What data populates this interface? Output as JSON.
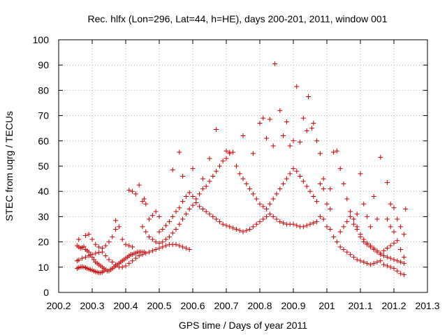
{
  "chart_data": {
    "type": "scatter",
    "title": "Rec. hlfx (Lon=296, Lat=44, h=HE), days 200-201, 2011, window 001",
    "xlabel": "GPS time / Days of year 2011",
    "ylabel": "STEC from uqrg / TECUs",
    "xlim": [
      200.2,
      201.3
    ],
    "ylim": [
      0,
      100
    ],
    "xticks": [
      "200.2",
      "200.3",
      "200.4",
      "200.5",
      "200.6",
      "200.7",
      "200.8",
      "200.9",
      "201",
      "201.1",
      "201.2",
      "201.3"
    ],
    "yticks": [
      "0",
      "10",
      "20",
      "30",
      "40",
      "50",
      "60",
      "70",
      "80",
      "90",
      "100"
    ],
    "marker": "+",
    "color": "#cc0000",
    "grid": true,
    "points": [
      [
        200.255,
        18.5
      ],
      [
        200.26,
        18.0
      ],
      [
        200.265,
        17.5
      ],
      [
        200.27,
        17.8
      ],
      [
        200.275,
        18.2
      ],
      [
        200.28,
        17.0
      ],
      [
        200.285,
        16.5
      ],
      [
        200.29,
        16.0
      ],
      [
        200.295,
        15.0
      ],
      [
        200.3,
        14.0
      ],
      [
        200.305,
        13.0
      ],
      [
        200.31,
        12.0
      ],
      [
        200.315,
        11.5
      ],
      [
        200.32,
        11.0
      ],
      [
        200.325,
        10.5
      ],
      [
        200.33,
        10.0
      ],
      [
        200.335,
        9.5
      ],
      [
        200.34,
        9.0
      ],
      [
        200.345,
        8.5
      ],
      [
        200.35,
        8.5
      ],
      [
        200.355,
        9.0
      ],
      [
        200.36,
        9.5
      ],
      [
        200.365,
        10.0
      ],
      [
        200.37,
        10.5
      ],
      [
        200.375,
        11.0
      ],
      [
        200.38,
        11.5
      ],
      [
        200.385,
        12.0
      ],
      [
        200.39,
        12.5
      ],
      [
        200.395,
        13.0
      ],
      [
        200.4,
        13.5
      ],
      [
        200.405,
        14.0
      ],
      [
        200.41,
        14.5
      ],
      [
        200.415,
        15.0
      ],
      [
        200.42,
        15.0
      ],
      [
        200.425,
        15.5
      ],
      [
        200.43,
        15.5
      ],
      [
        200.435,
        16.0
      ],
      [
        200.44,
        16.0
      ],
      [
        200.445,
        16.0
      ],
      [
        200.45,
        16.0
      ],
      [
        200.455,
        16.0
      ],
      [
        200.255,
        9.5
      ],
      [
        200.26,
        9.8
      ],
      [
        200.265,
        10.0
      ],
      [
        200.27,
        10.2
      ],
      [
        200.275,
        10.0
      ],
      [
        200.28,
        9.8
      ],
      [
        200.285,
        9.5
      ],
      [
        200.29,
        9.2
      ],
      [
        200.295,
        9.0
      ],
      [
        200.3,
        8.8
      ],
      [
        200.305,
        8.5
      ],
      [
        200.31,
        8.2
      ],
      [
        200.315,
        8.0
      ],
      [
        200.32,
        7.8
      ],
      [
        200.325,
        7.8
      ],
      [
        200.33,
        8.0
      ],
      [
        200.335,
        8.5
      ],
      [
        200.255,
        12.5
      ],
      [
        200.26,
        12.8
      ],
      [
        200.27,
        13.5
      ],
      [
        200.28,
        14.0
      ],
      [
        200.29,
        14.5
      ],
      [
        200.3,
        15.0
      ],
      [
        200.31,
        15.5
      ],
      [
        200.32,
        15.8
      ],
      [
        200.33,
        16.0
      ],
      [
        200.34,
        14.5
      ],
      [
        200.35,
        13.0
      ],
      [
        200.36,
        12.0
      ],
      [
        200.37,
        11.0
      ],
      [
        200.38,
        10.0
      ],
      [
        200.39,
        10.0
      ],
      [
        200.4,
        10.5
      ],
      [
        200.41,
        11.5
      ],
      [
        200.42,
        12.5
      ],
      [
        200.43,
        13.5
      ],
      [
        200.44,
        14.5
      ],
      [
        200.45,
        15.0
      ],
      [
        200.46,
        15.5
      ],
      [
        200.47,
        16.0
      ],
      [
        200.48,
        16.5
      ],
      [
        200.49,
        17.0
      ],
      [
        200.5,
        17.5
      ],
      [
        200.51,
        18.0
      ],
      [
        200.52,
        18.5
      ],
      [
        200.53,
        19.0
      ],
      [
        200.54,
        19.0
      ],
      [
        200.55,
        19.0
      ],
      [
        200.56,
        18.5
      ],
      [
        200.57,
        18.0
      ],
      [
        200.58,
        17.5
      ],
      [
        200.59,
        17.0
      ],
      [
        200.26,
        21.0
      ],
      [
        200.28,
        22.5
      ],
      [
        200.29,
        23.0
      ],
      [
        200.3,
        21.0
      ],
      [
        200.31,
        19.0
      ],
      [
        200.32,
        18.0
      ],
      [
        200.33,
        17.5
      ],
      [
        200.34,
        18.5
      ],
      [
        200.35,
        20.0
      ],
      [
        200.36,
        22.0
      ],
      [
        200.37,
        25.0
      ],
      [
        200.38,
        26.0
      ],
      [
        200.39,
        21.0
      ],
      [
        200.4,
        19.0
      ],
      [
        200.41,
        18.5
      ],
      [
        200.42,
        18.0
      ],
      [
        200.37,
        28.5
      ],
      [
        200.41,
        40.5
      ],
      [
        200.42,
        40.0
      ],
      [
        200.43,
        39.0
      ],
      [
        200.44,
        42.5
      ],
      [
        200.45,
        36.0
      ],
      [
        200.455,
        37.0
      ],
      [
        200.46,
        35.0
      ],
      [
        200.47,
        29.0
      ],
      [
        200.48,
        30.5
      ],
      [
        200.49,
        32.0
      ],
      [
        200.5,
        30.0
      ],
      [
        200.45,
        26.0
      ],
      [
        200.46,
        24.0
      ],
      [
        200.47,
        22.0
      ],
      [
        200.48,
        21.0
      ],
      [
        200.49,
        20.0
      ],
      [
        200.5,
        19.5
      ],
      [
        200.51,
        20.0
      ],
      [
        200.52,
        21.0
      ],
      [
        200.53,
        22.0
      ],
      [
        200.54,
        23.5
      ],
      [
        200.55,
        25.0
      ],
      [
        200.56,
        27.0
      ],
      [
        200.57,
        29.0
      ],
      [
        200.58,
        31.0
      ],
      [
        200.59,
        33.0
      ],
      [
        200.6,
        34.5
      ],
      [
        200.61,
        35.5
      ],
      [
        200.62,
        34.0
      ],
      [
        200.63,
        33.0
      ],
      [
        200.64,
        32.0
      ],
      [
        200.65,
        31.0
      ],
      [
        200.66,
        30.0
      ],
      [
        200.67,
        29.0
      ],
      [
        200.68,
        28.0
      ],
      [
        200.69,
        27.0
      ],
      [
        200.7,
        26.5
      ],
      [
        200.71,
        26.0
      ],
      [
        200.72,
        25.5
      ],
      [
        200.73,
        25.0
      ],
      [
        200.74,
        24.5
      ],
      [
        200.75,
        24.0
      ],
      [
        200.76,
        24.5
      ],
      [
        200.77,
        25.0
      ],
      [
        200.78,
        26.0
      ],
      [
        200.79,
        27.0
      ],
      [
        200.8,
        28.0
      ],
      [
        200.81,
        29.0
      ],
      [
        200.82,
        30.0
      ],
      [
        200.83,
        31.0
      ],
      [
        200.84,
        30.0
      ],
      [
        200.85,
        29.0
      ],
      [
        200.86,
        28.0
      ],
      [
        200.87,
        27.5
      ],
      [
        200.88,
        27.0
      ],
      [
        200.89,
        27.0
      ],
      [
        200.9,
        27.0
      ],
      [
        200.91,
        26.5
      ],
      [
        200.92,
        26.0
      ],
      [
        200.93,
        26.0
      ],
      [
        200.94,
        26.5
      ],
      [
        200.95,
        27.0
      ],
      [
        200.96,
        27.5
      ],
      [
        200.97,
        28.0
      ],
      [
        200.5,
        24.0
      ],
      [
        200.51,
        25.0
      ],
      [
        200.52,
        26.5
      ],
      [
        200.53,
        28.0
      ],
      [
        200.54,
        30.0
      ],
      [
        200.55,
        32.0
      ],
      [
        200.56,
        33.5
      ],
      [
        200.57,
        36.0
      ],
      [
        200.58,
        38.0
      ],
      [
        200.59,
        39.5
      ],
      [
        200.6,
        38.0
      ],
      [
        200.61,
        37.0
      ],
      [
        200.62,
        39.0
      ],
      [
        200.63,
        41.0
      ],
      [
        200.64,
        42.0
      ],
      [
        200.65,
        44.0
      ],
      [
        200.66,
        46.0
      ],
      [
        200.67,
        48.0
      ],
      [
        200.68,
        50.0
      ],
      [
        200.69,
        52.0
      ],
      [
        200.7,
        53.0
      ],
      [
        200.71,
        55.0
      ],
      [
        200.72,
        55.5
      ],
      [
        200.73,
        50.0
      ],
      [
        200.74,
        47.0
      ],
      [
        200.75,
        45.0
      ],
      [
        200.76,
        43.0
      ],
      [
        200.77,
        41.0
      ],
      [
        200.78,
        39.0
      ],
      [
        200.79,
        37.0
      ],
      [
        200.8,
        35.0
      ],
      [
        200.81,
        34.0
      ],
      [
        200.82,
        33.0
      ],
      [
        200.83,
        35.0
      ],
      [
        200.84,
        37.0
      ],
      [
        200.85,
        39.0
      ],
      [
        200.86,
        41.0
      ],
      [
        200.87,
        43.0
      ],
      [
        200.88,
        45.0
      ],
      [
        200.89,
        47.0
      ],
      [
        200.9,
        49.0
      ],
      [
        200.91,
        48.0
      ],
      [
        200.92,
        46.0
      ],
      [
        200.93,
        44.0
      ],
      [
        200.94,
        42.0
      ],
      [
        200.95,
        40.0
      ],
      [
        200.96,
        38.0
      ],
      [
        200.97,
        36.0
      ],
      [
        200.54,
        48.5
      ],
      [
        200.56,
        55.5
      ],
      [
        200.57,
        46.0
      ],
      [
        200.6,
        49.0
      ],
      [
        200.63,
        45.0
      ],
      [
        200.65,
        53.0
      ],
      [
        200.67,
        64.5
      ],
      [
        200.7,
        56.0
      ],
      [
        200.71,
        55.5
      ],
      [
        200.75,
        62.0
      ],
      [
        200.78,
        55.0
      ],
      [
        200.8,
        67.0
      ],
      [
        200.81,
        69.0
      ],
      [
        200.82,
        61.0
      ],
      [
        200.83,
        68.5
      ],
      [
        200.84,
        58.0
      ],
      [
        200.845,
        90.5
      ],
      [
        200.86,
        72.0
      ],
      [
        200.87,
        62.0
      ],
      [
        200.88,
        67.5
      ],
      [
        200.89,
        58.0
      ],
      [
        200.9,
        60.0
      ],
      [
        200.91,
        81.5
      ],
      [
        200.92,
        59.5
      ],
      [
        200.93,
        69.0
      ],
      [
        200.94,
        64.0
      ],
      [
        200.945,
        77.5
      ],
      [
        200.955,
        65.0
      ],
      [
        200.96,
        67.0
      ],
      [
        200.97,
        60.0
      ],
      [
        200.98,
        55.0
      ],
      [
        200.99,
        45.0
      ],
      [
        200.98,
        43.0
      ],
      [
        200.99,
        41.0
      ],
      [
        201.0,
        35.0
      ],
      [
        201.01,
        33.0
      ],
      [
        200.98,
        30.0
      ],
      [
        200.99,
        29.0
      ],
      [
        201.0,
        26.0
      ],
      [
        201.01,
        25.0
      ],
      [
        201.02,
        22.0
      ],
      [
        201.03,
        20.0
      ],
      [
        201.04,
        18.0
      ],
      [
        201.05,
        17.0
      ],
      [
        201.06,
        16.0
      ],
      [
        201.07,
        15.0
      ],
      [
        201.08,
        14.0
      ],
      [
        201.09,
        13.0
      ],
      [
        201.1,
        12.5
      ],
      [
        201.11,
        12.0
      ],
      [
        201.12,
        11.5
      ],
      [
        201.13,
        11.0
      ],
      [
        201.14,
        11.5
      ],
      [
        201.15,
        12.0
      ],
      [
        201.16,
        12.5
      ],
      [
        201.17,
        11.0
      ],
      [
        201.18,
        10.5
      ],
      [
        201.19,
        10.0
      ],
      [
        201.2,
        9.5
      ],
      [
        201.21,
        8.5
      ],
      [
        201.22,
        7.5
      ],
      [
        201.23,
        7.0
      ],
      [
        201.01,
        41.0
      ],
      [
        201.02,
        55.5
      ],
      [
        201.03,
        56.0
      ],
      [
        201.04,
        49.0
      ],
      [
        201.05,
        43.0
      ],
      [
        201.06,
        37.0
      ],
      [
        201.07,
        32.0
      ],
      [
        201.08,
        29.0
      ],
      [
        201.09,
        26.0
      ],
      [
        201.1,
        22.0
      ],
      [
        201.11,
        20.0
      ],
      [
        201.12,
        19.0
      ],
      [
        201.13,
        18.0
      ],
      [
        201.14,
        17.0
      ],
      [
        201.15,
        16.0
      ],
      [
        201.16,
        15.0
      ],
      [
        201.17,
        14.5
      ],
      [
        201.18,
        14.0
      ],
      [
        201.19,
        13.5
      ],
      [
        201.2,
        13.0
      ],
      [
        201.21,
        12.5
      ],
      [
        201.22,
        12.0
      ],
      [
        201.23,
        11.5
      ],
      [
        201.04,
        24.0
      ],
      [
        201.05,
        26.0
      ],
      [
        201.06,
        28.0
      ],
      [
        201.07,
        30.0
      ],
      [
        201.08,
        27.0
      ],
      [
        201.09,
        25.0
      ],
      [
        201.1,
        23.0
      ],
      [
        201.11,
        21.0
      ],
      [
        201.12,
        19.5
      ],
      [
        201.13,
        18.5
      ],
      [
        201.14,
        17.5
      ],
      [
        201.15,
        16.5
      ],
      [
        201.16,
        15.5
      ],
      [
        201.17,
        16.5
      ],
      [
        201.18,
        17.5
      ],
      [
        201.19,
        18.5
      ],
      [
        201.2,
        19.5
      ],
      [
        201.21,
        20.5
      ],
      [
        201.22,
        17.0
      ],
      [
        201.23,
        14.0
      ],
      [
        201.1,
        47.0
      ],
      [
        201.14,
        38.0
      ],
      [
        201.16,
        53.5
      ],
      [
        201.18,
        43.5
      ],
      [
        201.19,
        35.0
      ],
      [
        201.2,
        33.5
      ],
      [
        201.21,
        29.0
      ],
      [
        201.22,
        26.0
      ],
      [
        201.23,
        23.0
      ],
      [
        201.235,
        33.0
      ],
      [
        201.18,
        29.0
      ],
      [
        201.19,
        26.0
      ],
      [
        201.2,
        24.0
      ],
      [
        201.15,
        29.0
      ],
      [
        201.13,
        26.0
      ],
      [
        201.12,
        30.0
      ],
      [
        201.11,
        35.0
      ],
      [
        201.09,
        31.0
      ]
    ]
  }
}
